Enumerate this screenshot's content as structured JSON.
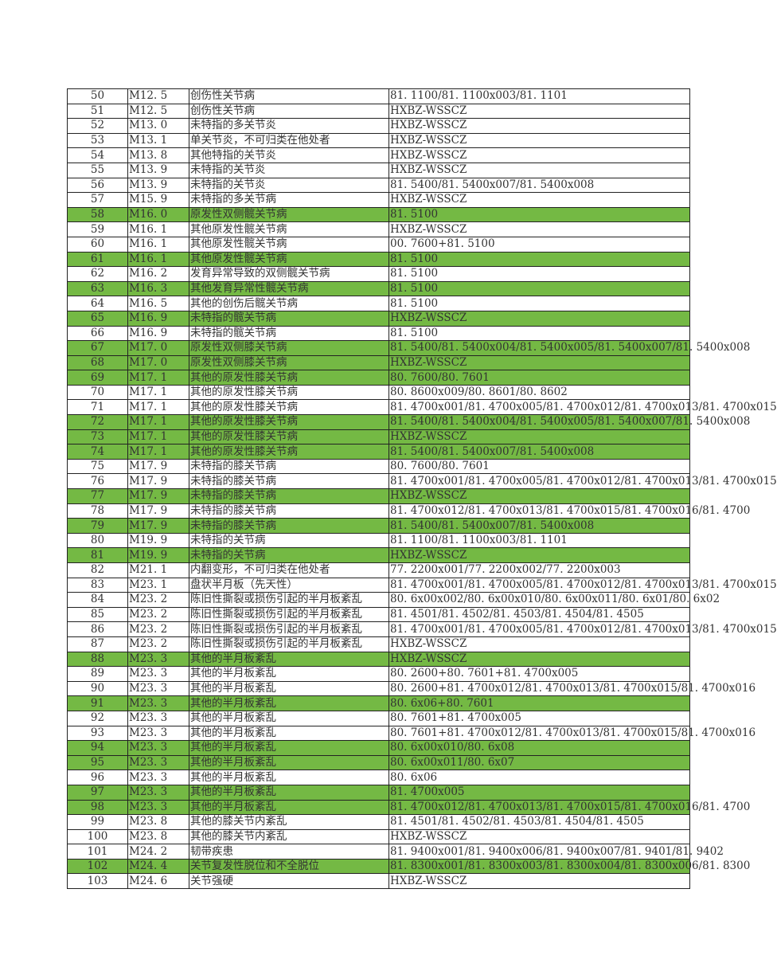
{
  "highlight_color": "#74b944",
  "rows": [
    {
      "no": "50",
      "code": "M12. 5",
      "name": "创伤性关节病",
      "ops": "81. 1100/81. 1100x003/81. 1101",
      "hl": false
    },
    {
      "no": "51",
      "code": "M12. 5",
      "name": "创伤性关节病",
      "ops": "HXBZ-WSSCZ",
      "hl": false
    },
    {
      "no": "52",
      "code": "M13. 0",
      "name": "未特指的多关节炎",
      "ops": "HXBZ-WSSCZ",
      "hl": false
    },
    {
      "no": "53",
      "code": "M13. 1",
      "name": "单关节炎，不可归类在他处者",
      "ops": "HXBZ-WSSCZ",
      "hl": false
    },
    {
      "no": "54",
      "code": "M13. 8",
      "name": "其他特指的关节炎",
      "ops": "HXBZ-WSSCZ",
      "hl": false
    },
    {
      "no": "55",
      "code": "M13. 9",
      "name": "未特指的关节炎",
      "ops": "HXBZ-WSSCZ",
      "hl": false
    },
    {
      "no": "56",
      "code": "M13. 9",
      "name": "未特指的关节炎",
      "ops": "81. 5400/81. 5400x007/81. 5400x008",
      "hl": false
    },
    {
      "no": "57",
      "code": "M15. 9",
      "name": "未特指的多关节病",
      "ops": "HXBZ-WSSCZ",
      "hl": false
    },
    {
      "no": "58",
      "code": "M16. 0",
      "name": "原发性双侧髋关节病",
      "ops": "81. 5100",
      "hl": true
    },
    {
      "no": "59",
      "code": "M16. 1",
      "name": "其他原发性髋关节病",
      "ops": "HXBZ-WSSCZ",
      "hl": false
    },
    {
      "no": "60",
      "code": "M16. 1",
      "name": "其他原发性髋关节病",
      "ops": "00. 7600+81. 5100",
      "hl": false
    },
    {
      "no": "61",
      "code": "M16. 1",
      "name": "其他原发性髋关节病",
      "ops": "81. 5100",
      "hl": true
    },
    {
      "no": "62",
      "code": "M16. 2",
      "name": "发育异常导致的双侧髋关节病",
      "ops": "81. 5100",
      "hl": false
    },
    {
      "no": "63",
      "code": "M16. 3",
      "name": "其他发育异常性髋关节病",
      "ops": "81. 5100",
      "hl": true
    },
    {
      "no": "64",
      "code": "M16. 5",
      "name": "其他的创伤后髋关节病",
      "ops": "81. 5100",
      "hl": false
    },
    {
      "no": "65",
      "code": "M16. 9",
      "name": "未特指的髋关节病",
      "ops": "HXBZ-WSSCZ",
      "hl": true
    },
    {
      "no": "66",
      "code": "M16. 9",
      "name": "未特指的髋关节病",
      "ops": "81. 5100",
      "hl": false
    },
    {
      "no": "67",
      "code": "M17. 0",
      "name": "原发性双侧膝关节病",
      "ops": "81. 5400/81. 5400x004/81. 5400x005/81. 5400x007/81. 5400x008",
      "hl": true
    },
    {
      "no": "68",
      "code": "M17. 0",
      "name": "原发性双侧膝关节病",
      "ops": "HXBZ-WSSCZ",
      "hl": true
    },
    {
      "no": "69",
      "code": "M17. 1",
      "name": "其他的原发性膝关节病",
      "ops": "80. 7600/80. 7601",
      "hl": true
    },
    {
      "no": "70",
      "code": "M17. 1",
      "name": "其他的原发性膝关节病",
      "ops": "80. 8600x009/80. 8601/80. 8602",
      "hl": false
    },
    {
      "no": "71",
      "code": "M17. 1",
      "name": "其他的原发性膝关节病",
      "ops": "81. 4700x001/81. 4700x005/81. 4700x012/81. 4700x013/81. 4700x015",
      "hl": false
    },
    {
      "no": "72",
      "code": "M17. 1",
      "name": "其他的原发性膝关节病",
      "ops": "81. 5400/81. 5400x004/81. 5400x005/81. 5400x007/81. 5400x008",
      "hl": true
    },
    {
      "no": "73",
      "code": "M17. 1",
      "name": "其他的原发性膝关节病",
      "ops": "HXBZ-WSSCZ",
      "hl": true
    },
    {
      "no": "74",
      "code": "M17. 1",
      "name": "其他的原发性膝关节病",
      "ops": "81. 5400/81. 5400x007/81. 5400x008",
      "hl": true
    },
    {
      "no": "75",
      "code": "M17. 9",
      "name": "未特指的膝关节病",
      "ops": "80. 7600/80. 7601",
      "hl": false
    },
    {
      "no": "76",
      "code": "M17. 9",
      "name": "未特指的膝关节病",
      "ops": "81. 4700x001/81. 4700x005/81. 4700x012/81. 4700x013/81. 4700x015",
      "hl": false
    },
    {
      "no": "77",
      "code": "M17. 9",
      "name": "未特指的膝关节病",
      "ops": "HXBZ-WSSCZ",
      "hl": true
    },
    {
      "no": "78",
      "code": "M17. 9",
      "name": "未特指的膝关节病",
      "ops": "81. 4700x012/81. 4700x013/81. 4700x015/81. 4700x016/81. 4700",
      "hl": false
    },
    {
      "no": "79",
      "code": "M17. 9",
      "name": "未特指的膝关节病",
      "ops": "81. 5400/81. 5400x007/81. 5400x008",
      "hl": true
    },
    {
      "no": "80",
      "code": "M19. 9",
      "name": "未特指的关节病",
      "ops": "81. 1100/81. 1100x003/81. 1101",
      "hl": false
    },
    {
      "no": "81",
      "code": "M19. 9",
      "name": "未特指的关节病",
      "ops": "HXBZ-WSSCZ",
      "hl": true
    },
    {
      "no": "82",
      "code": "M21. 1",
      "name": "内翻变形，不可归类在他处者",
      "ops": "77. 2200x001/77. 2200x002/77. 2200x003",
      "hl": false
    },
    {
      "no": "83",
      "code": "M23. 1",
      "name": "盘状半月板（先天性）",
      "ops": "81. 4700x001/81. 4700x005/81. 4700x012/81. 4700x013/81. 4700x015",
      "hl": false
    },
    {
      "no": "84",
      "code": "M23. 2",
      "name": "陈旧性撕裂或损伤引起的半月板紊乱",
      "ops": "80. 6x00x002/80. 6x00x010/80. 6x00x011/80. 6x01/80. 6x02",
      "hl": false
    },
    {
      "no": "85",
      "code": "M23. 2",
      "name": "陈旧性撕裂或损伤引起的半月板紊乱",
      "ops": "81. 4501/81. 4502/81. 4503/81. 4504/81. 4505",
      "hl": false
    },
    {
      "no": "86",
      "code": "M23. 2",
      "name": "陈旧性撕裂或损伤引起的半月板紊乱",
      "ops": "81. 4700x001/81. 4700x005/81. 4700x012/81. 4700x013/81. 4700x015",
      "hl": false
    },
    {
      "no": "87",
      "code": "M23. 2",
      "name": "陈旧性撕裂或损伤引起的半月板紊乱",
      "ops": "HXBZ-WSSCZ",
      "hl": false
    },
    {
      "no": "88",
      "code": "M23. 3",
      "name": "其他的半月板紊乱",
      "ops": "HXBZ-WSSCZ",
      "hl": true
    },
    {
      "no": "89",
      "code": "M23. 3",
      "name": "其他的半月板紊乱",
      "ops": "80. 2600+80. 7601+81. 4700x005",
      "hl": false
    },
    {
      "no": "90",
      "code": "M23. 3",
      "name": "其他的半月板紊乱",
      "ops": "80. 2600+81. 4700x012/81. 4700x013/81. 4700x015/81. 4700x016",
      "hl": false
    },
    {
      "no": "91",
      "code": "M23. 3",
      "name": "其他的半月板紊乱",
      "ops": "80. 6x06+80. 7601",
      "hl": true
    },
    {
      "no": "92",
      "code": "M23. 3",
      "name": "其他的半月板紊乱",
      "ops": "80. 7601+81. 4700x005",
      "hl": false
    },
    {
      "no": "93",
      "code": "M23. 3",
      "name": "其他的半月板紊乱",
      "ops": "80. 7601+81. 4700x012/81. 4700x013/81. 4700x015/81. 4700x016",
      "hl": false
    },
    {
      "no": "94",
      "code": "M23. 3",
      "name": "其他的半月板紊乱",
      "ops": "80. 6x00x010/80. 6x08",
      "hl": true
    },
    {
      "no": "95",
      "code": "M23. 3",
      "name": "其他的半月板紊乱",
      "ops": "80. 6x00x011/80. 6x07",
      "hl": true
    },
    {
      "no": "96",
      "code": "M23. 3",
      "name": "其他的半月板紊乱",
      "ops": "80. 6x06",
      "hl": false
    },
    {
      "no": "97",
      "code": "M23. 3",
      "name": "其他的半月板紊乱",
      "ops": "81. 4700x005",
      "hl": true
    },
    {
      "no": "98",
      "code": "M23. 3",
      "name": "其他的半月板紊乱",
      "ops": "81. 4700x012/81. 4700x013/81. 4700x015/81. 4700x016/81. 4700",
      "hl": true
    },
    {
      "no": "99",
      "code": "M23. 8",
      "name": "其他的膝关节内紊乱",
      "ops": "81. 4501/81. 4502/81. 4503/81. 4504/81. 4505",
      "hl": false
    },
    {
      "no": "100",
      "code": "M23. 8",
      "name": "其他的膝关节内紊乱",
      "ops": "HXBZ-WSSCZ",
      "hl": false
    },
    {
      "no": "101",
      "code": "M24. 2",
      "name": "韧带疾患",
      "ops": "81. 9400x001/81. 9400x006/81. 9400x007/81. 9401/81. 9402",
      "hl": false
    },
    {
      "no": "102",
      "code": "M24. 4",
      "name": "关节复发性脱位和不全脱位",
      "ops": "81. 8300x001/81. 8300x003/81. 8300x004/81. 8300x006/81. 8300",
      "hl": true
    },
    {
      "no": "103",
      "code": "M24. 6",
      "name": "关节强硬",
      "ops": "HXBZ-WSSCZ",
      "hl": false
    }
  ]
}
